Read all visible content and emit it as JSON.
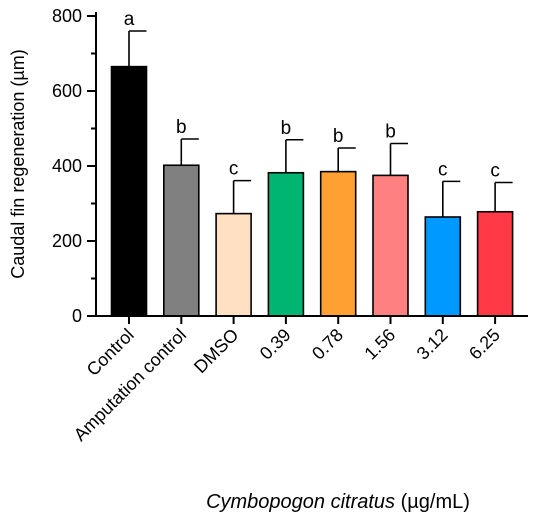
{
  "chart_data": {
    "type": "bar",
    "categories": [
      "Control",
      "Amputation control",
      "DMSO",
      "0.39",
      "0.78",
      "1.56",
      "3.12",
      "6.25"
    ],
    "values": [
      665,
      402,
      273,
      382,
      385,
      375,
      264,
      278
    ],
    "errors": [
      95,
      70,
      88,
      88,
      63,
      85,
      95,
      78
    ],
    "letters": [
      "a",
      "b",
      "c",
      "b",
      "b",
      "b",
      "c",
      "c"
    ],
    "colors": [
      "#000000",
      "#808080",
      "#FFE0C2",
      "#00B571",
      "#FFA033",
      "#FF8080",
      "#0099FF",
      "#FF3A46"
    ],
    "ylim": [
      0,
      800
    ],
    "yticks": [
      0,
      200,
      400,
      600,
      800
    ],
    "ylabel": "Caudal fin regeneration (µm)",
    "xlabel_italic": "Cymbopogon citratus",
    "xlabel_unit": " (µg/mL)"
  }
}
